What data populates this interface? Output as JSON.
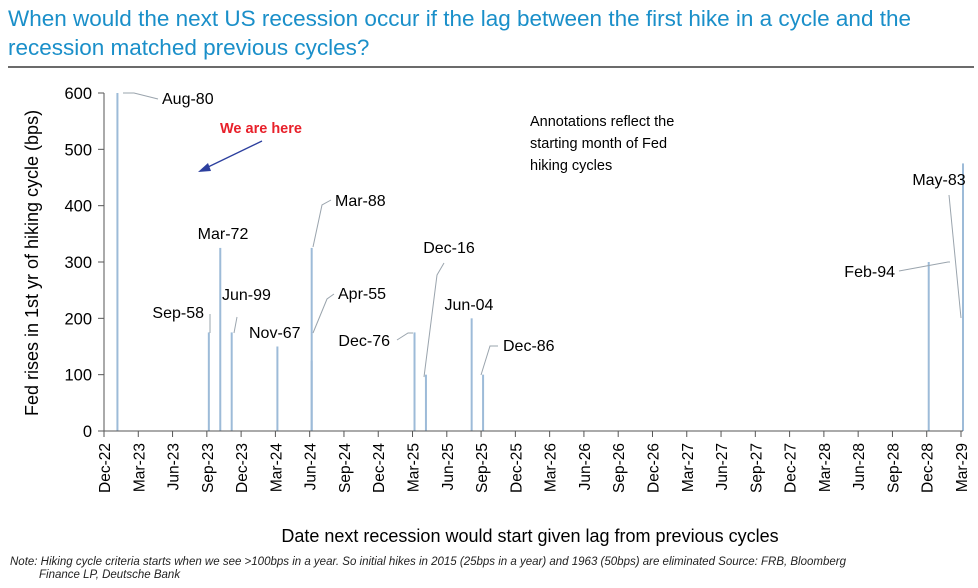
{
  "title": "When would the next US recession occur if the lag between the first hike in a cycle and the recession matched previous cycles?",
  "note_line1": "Note: Hiking cycle criteria starts when we see >100bps in a year. So initial hikes in 2015 (25bps in a year) and 1963 (50bps) are eliminated Source: FRB, Bloomberg",
  "note_line2": "Finance LP, Deutsche Bank",
  "colors": {
    "title": "#1a8fc9",
    "bars": "#9dbbd8",
    "highlight": "#e8202a",
    "arrow": "#2c3f9e"
  },
  "chart_data": {
    "type": "bar",
    "xlabel": "Date next recession would start given lag from previous cycles",
    "ylabel": "Fed rises in 1st yr of hiking cycle (bps)",
    "ylim": [
      0,
      600
    ],
    "yticks": [
      0,
      100,
      200,
      300,
      400,
      500,
      600
    ],
    "xlim": [
      "2022-12",
      "2029-03"
    ],
    "xticks": [
      "Dec-22",
      "Mar-23",
      "Jun-23",
      "Sep-23",
      "Dec-23",
      "Mar-24",
      "Jun-24",
      "Sep-24",
      "Dec-24",
      "Mar-25",
      "Jun-25",
      "Sep-25",
      "Dec-25",
      "Mar-26",
      "Jun-26",
      "Sep-26",
      "Dec-26",
      "Mar-27",
      "Jun-27",
      "Sep-27",
      "Dec-27",
      "Mar-28",
      "Jun-28",
      "Sep-28",
      "Dec-28",
      "Mar-29"
    ],
    "grid": false,
    "legend": "none",
    "bars": [
      {
        "date": "2023-01",
        "value": 600,
        "label": "Aug-80"
      },
      {
        "date": "2023-09",
        "value": 175,
        "label": "Sep-58"
      },
      {
        "date": "2023-10",
        "value": 325,
        "label": "Mar-72"
      },
      {
        "date": "2023-11",
        "value": 175,
        "label": "Jun-99"
      },
      {
        "date": "2024-03",
        "value": 150,
        "label": "Nov-67"
      },
      {
        "date": "2024-06",
        "value": 325,
        "label": "Mar-88"
      },
      {
        "date": "2024-06",
        "value": 125,
        "label": "Apr-55"
      },
      {
        "date": "2025-03",
        "value": 175,
        "label": "Dec-76"
      },
      {
        "date": "2025-04",
        "value": 100,
        "label": "Dec-16"
      },
      {
        "date": "2025-08",
        "value": 200,
        "label": "Jun-04"
      },
      {
        "date": "2025-09",
        "value": 100,
        "label": "Dec-86"
      },
      {
        "date": "2028-12",
        "value": 300,
        "label": "Feb-94"
      },
      {
        "date": "2029-03",
        "value": 475,
        "label": "May-83"
      }
    ],
    "annotations": [
      {
        "text": "We are here",
        "color": "highlight"
      },
      {
        "text": "Annotations reflect the starting month of Fed hiking cycles"
      }
    ]
  }
}
